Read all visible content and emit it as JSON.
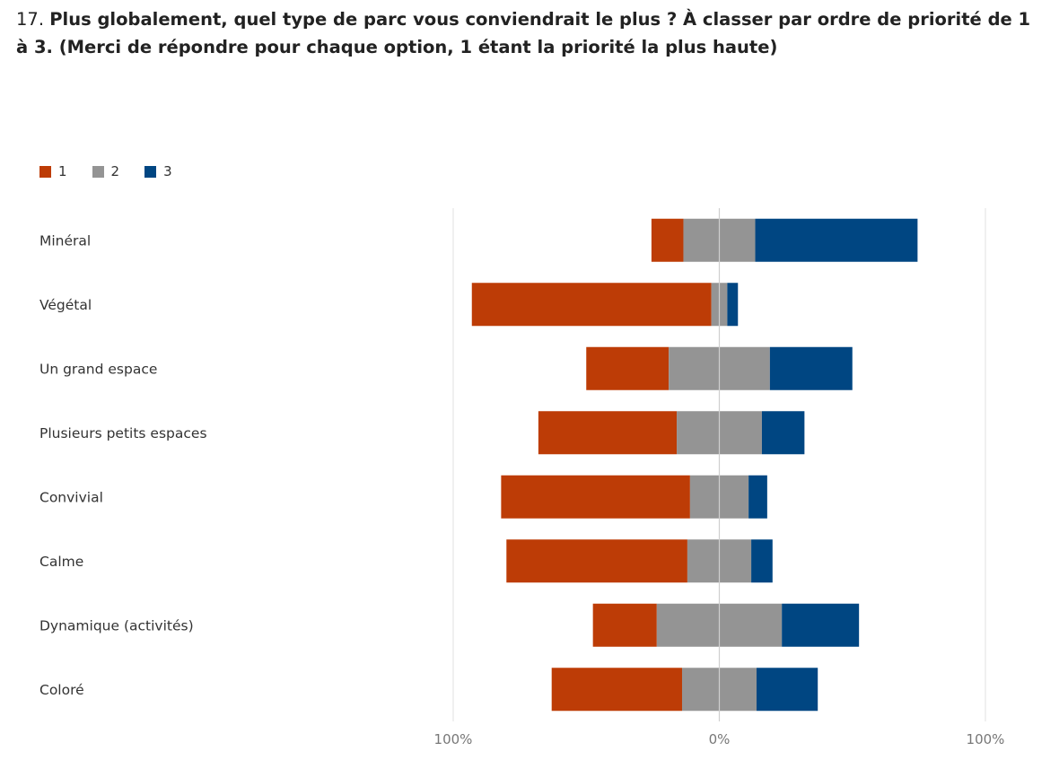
{
  "question": {
    "number": "17.",
    "text": "Plus globalement, quel type de parc vous conviendrait le plus ? À classer par ordre de priorité de 1 à 3. (Merci de répondre pour chaque option, 1 étant la priorité la plus haute)"
  },
  "colors": {
    "r1": "#bd3c06",
    "r2": "#949494",
    "r3": "#004682",
    "grid": "#e2e2e2",
    "zero": "#cfcfcf"
  },
  "chart_data": {
    "type": "bar",
    "orientation": "horizontal",
    "stacked": "diverging",
    "xlim": [
      -100,
      100
    ],
    "x_ticks": [
      {
        "value": -100,
        "label": "100%"
      },
      {
        "value": 0,
        "label": "0%"
      },
      {
        "value": 100,
        "label": "100%"
      }
    ],
    "legend": {
      "position": "top-left",
      "entries": [
        "1",
        "2",
        "3"
      ]
    },
    "grid": true,
    "categories": [
      "Minéral",
      "Végétal",
      "Un grand espace",
      "Plusieurs petits espaces",
      "Convivial",
      "Calme",
      "Dynamique (activités)",
      "Coloré"
    ],
    "series": [
      {
        "name": "1",
        "values": [
          12,
          90,
          31,
          52,
          71,
          68,
          24,
          49
        ]
      },
      {
        "name": "2",
        "values": [
          27,
          6,
          38,
          32,
          22,
          24,
          47,
          28
        ]
      },
      {
        "name": "3",
        "values": [
          61,
          4,
          31,
          16,
          7,
          8,
          29,
          23
        ]
      }
    ]
  }
}
